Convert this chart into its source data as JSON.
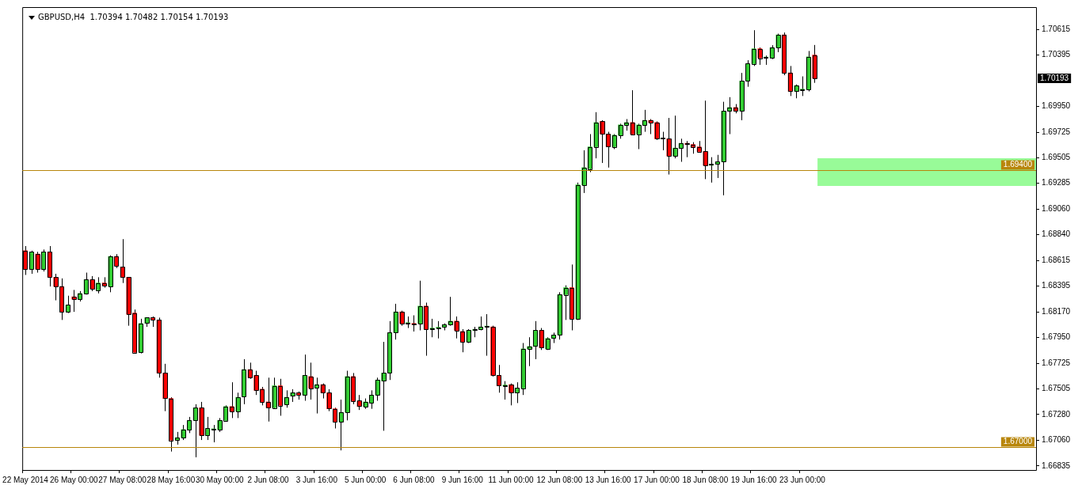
{
  "chart_data": {
    "type": "candlestick",
    "title": "GBPUSD,H4  1.70394 1.70482 1.70154 1.70193",
    "categories": [
      "22 May 2014",
      null,
      null,
      null,
      null,
      null,
      null,
      null,
      "26 May 00:00",
      null,
      null,
      null,
      null,
      null,
      null,
      null,
      "27 May 08:00",
      null,
      null,
      null,
      null,
      null,
      null,
      null,
      "28 May 16:00",
      null,
      null,
      null,
      null,
      null,
      null,
      null,
      "30 May 00:00",
      null,
      null,
      null,
      null,
      null,
      null,
      null,
      "2 Jun 08:00",
      null,
      null,
      null,
      null,
      null,
      null,
      null,
      "3 Jun 16:00",
      null,
      null,
      null,
      null,
      null,
      null,
      null,
      "5 Jun 00:00",
      null,
      null,
      null,
      null,
      null,
      null,
      null,
      "6 Jun 08:00",
      null,
      null,
      null,
      null,
      null,
      null,
      null,
      "9 Jun 16:00",
      null,
      null,
      null,
      null,
      null,
      null,
      null,
      "11 Jun 00:00",
      null,
      null,
      null,
      null,
      null,
      null,
      null,
      "12 Jun 08:00",
      null,
      null,
      null,
      null,
      null,
      null,
      null,
      "13 Jun 16:00",
      null,
      null,
      null,
      null,
      null,
      null,
      null,
      "17 Jun 00:00",
      null,
      null,
      null,
      null,
      null,
      null,
      null,
      "18 Jun 08:00",
      null,
      null,
      null,
      null,
      null,
      null,
      null,
      "19 Jun 16:00",
      null,
      null,
      null,
      null,
      null,
      null,
      null,
      "23 Jun 00:00",
      null,
      null,
      null,
      null,
      null,
      null,
      null,
      null,
      null,
      null,
      null,
      null,
      null,
      null,
      null,
      null,
      null,
      null,
      null,
      null,
      null,
      null,
      null,
      null,
      null,
      null,
      null,
      null,
      null,
      null,
      null,
      null,
      null,
      null,
      null,
      null,
      null,
      null
    ],
    "ohlc": [
      [
        1.687,
        1.6874,
        1.6849,
        1.6854
      ],
      [
        1.6854,
        1.687,
        1.685,
        1.6869
      ],
      [
        1.6867,
        1.6869,
        1.6851,
        1.6854
      ],
      [
        1.6854,
        1.6871,
        1.6852,
        1.6869
      ],
      [
        1.6869,
        1.6874,
        1.6839,
        1.6847
      ],
      [
        1.6847,
        1.685,
        1.6827,
        1.6839
      ],
      [
        1.6839,
        1.6846,
        1.681,
        1.6817
      ],
      [
        1.6817,
        1.6831,
        1.6816,
        1.6823
      ],
      [
        1.683,
        1.6836,
        1.6817,
        1.6828
      ],
      [
        1.6828,
        1.6835,
        1.6826,
        1.6833
      ],
      [
        1.6833,
        1.6851,
        1.6832,
        1.6845
      ],
      [
        1.6845,
        1.6848,
        1.6835,
        1.6837
      ],
      [
        1.6836,
        1.6847,
        1.6833,
        1.6842
      ],
      [
        1.6842,
        1.6847,
        1.6838,
        1.684
      ],
      [
        1.6839,
        1.6866,
        1.6834,
        1.6865
      ],
      [
        1.6865,
        1.6867,
        1.6855,
        1.6857
      ],
      [
        1.6856,
        1.688,
        1.6842,
        1.6847
      ],
      [
        1.6847,
        1.6847,
        1.6805,
        1.6815
      ],
      [
        1.6816,
        1.6819,
        1.6781,
        1.6782
      ],
      [
        1.6782,
        1.6811,
        1.6781,
        1.6807
      ],
      [
        1.6807,
        1.6812,
        1.6804,
        1.6812
      ],
      [
        1.6812,
        1.6813,
        1.6804,
        1.681
      ],
      [
        1.681,
        1.6812,
        1.676,
        1.6764
      ],
      [
        1.6764,
        1.6772,
        1.6731,
        1.6742
      ],
      [
        1.6742,
        1.6743,
        1.6696,
        1.6706
      ],
      [
        1.6706,
        1.6713,
        1.6702,
        1.6708
      ],
      [
        1.6708,
        1.6719,
        1.6706,
        1.6715
      ],
      [
        1.6715,
        1.6726,
        1.6712,
        1.6723
      ],
      [
        1.6723,
        1.6737,
        1.6691,
        1.6734
      ],
      [
        1.6734,
        1.6739,
        1.6706,
        1.671
      ],
      [
        1.671,
        1.6726,
        1.6706,
        1.6716
      ],
      [
        1.6715,
        1.6719,
        1.6704,
        1.6715
      ],
      [
        1.6715,
        1.6725,
        1.6713,
        1.6723
      ],
      [
        1.6723,
        1.6736,
        1.6722,
        1.6735
      ],
      [
        1.6735,
        1.6756,
        1.6725,
        1.6731
      ],
      [
        1.6731,
        1.6747,
        1.6725,
        1.6743
      ],
      [
        1.6744,
        1.6776,
        1.6737,
        1.6767
      ],
      [
        1.6767,
        1.6773,
        1.6759,
        1.676
      ],
      [
        1.6762,
        1.6766,
        1.6745,
        1.6749
      ],
      [
        1.675,
        1.6752,
        1.6736,
        1.6739
      ],
      [
        1.6739,
        1.676,
        1.6722,
        1.6734
      ],
      [
        1.6734,
        1.676,
        1.6733,
        1.6753
      ],
      [
        1.6753,
        1.6759,
        1.6727,
        1.6736
      ],
      [
        1.6737,
        1.6749,
        1.6734,
        1.6743
      ],
      [
        1.6744,
        1.675,
        1.6739,
        1.6747
      ],
      [
        1.6747,
        1.6748,
        1.6741,
        1.6745
      ],
      [
        1.6745,
        1.678,
        1.674,
        1.6762
      ],
      [
        1.6761,
        1.6773,
        1.6741,
        1.6751
      ],
      [
        1.6751,
        1.676,
        1.6729,
        1.6754
      ],
      [
        1.6754,
        1.6755,
        1.6742,
        1.6747
      ],
      [
        1.6747,
        1.675,
        1.6731,
        1.6733
      ],
      [
        1.6733,
        1.6734,
        1.6716,
        1.6722
      ],
      [
        1.6722,
        1.6741,
        1.6697,
        1.673
      ],
      [
        1.673,
        1.6766,
        1.6723,
        1.6761
      ],
      [
        1.6761,
        1.6764,
        1.6737,
        1.674
      ],
      [
        1.674,
        1.6745,
        1.6732,
        1.6735
      ],
      [
        1.6735,
        1.6742,
        1.6733,
        1.6739
      ],
      [
        1.6738,
        1.6749,
        1.6733,
        1.6745
      ],
      [
        1.6745,
        1.676,
        1.674,
        1.6758
      ],
      [
        1.6757,
        1.6791,
        1.6714,
        1.6764
      ],
      [
        1.6764,
        1.6809,
        1.6758,
        1.6799
      ],
      [
        1.6799,
        1.6824,
        1.6793,
        1.6817
      ],
      [
        1.6817,
        1.6818,
        1.6805,
        1.6807
      ],
      [
        1.6807,
        1.6813,
        1.6803,
        1.6807
      ],
      [
        1.6807,
        1.6814,
        1.68,
        1.6806
      ],
      [
        1.6807,
        1.6844,
        1.6801,
        1.6822
      ],
      [
        1.6822,
        1.6825,
        1.6779,
        1.6802
      ],
      [
        1.6802,
        1.6811,
        1.6795,
        1.6803
      ],
      [
        1.6803,
        1.6809,
        1.6794,
        1.6803
      ],
      [
        1.6804,
        1.6807,
        1.6801,
        1.6806
      ],
      [
        1.6806,
        1.683,
        1.6805,
        1.6809
      ],
      [
        1.6809,
        1.6813,
        1.6794,
        1.6801
      ],
      [
        1.68,
        1.6802,
        1.6782,
        1.6791
      ],
      [
        1.6791,
        1.6802,
        1.679,
        1.6801
      ],
      [
        1.6801,
        1.6804,
        1.6795,
        1.6801
      ],
      [
        1.6802,
        1.6813,
        1.6801,
        1.6804
      ],
      [
        1.6804,
        1.6815,
        1.6779,
        1.6804
      ],
      [
        1.6804,
        1.6805,
        1.6761,
        1.6762
      ],
      [
        1.6762,
        1.6771,
        1.6747,
        1.6753
      ],
      [
        1.6753,
        1.6757,
        1.6741,
        1.6753
      ],
      [
        1.6754,
        1.6755,
        1.6736,
        1.6747
      ],
      [
        1.6747,
        1.6756,
        1.6738,
        1.6751
      ],
      [
        1.6751,
        1.679,
        1.6745,
        1.6785
      ],
      [
        1.6785,
        1.6795,
        1.677,
        1.6787
      ],
      [
        1.6787,
        1.6809,
        1.6776,
        1.6801
      ],
      [
        1.6801,
        1.6803,
        1.6784,
        1.6786
      ],
      [
        1.6785,
        1.6795,
        1.6784,
        1.6794
      ],
      [
        1.6794,
        1.6799,
        1.679,
        1.6797
      ],
      [
        1.6797,
        1.6834,
        1.6793,
        1.6832
      ],
      [
        1.6832,
        1.684,
        1.681,
        1.6838
      ],
      [
        1.6838,
        1.6858,
        1.6801,
        1.6811
      ],
      [
        1.6811,
        1.6929,
        1.681,
        1.6927
      ],
      [
        1.6927,
        1.6957,
        1.692,
        1.6942
      ],
      [
        1.6941,
        1.6971,
        1.6938,
        1.696
      ],
      [
        1.696,
        1.699,
        1.695,
        1.6981
      ],
      [
        1.6982,
        1.6983,
        1.6946,
        1.6971
      ],
      [
        1.6971,
        1.6973,
        1.6942,
        1.696
      ],
      [
        1.696,
        1.6971,
        1.6958,
        1.697
      ],
      [
        1.697,
        1.698,
        1.6967,
        1.6979
      ],
      [
        1.6979,
        1.6984,
        1.6974,
        1.6981
      ],
      [
        1.6981,
        1.7009,
        1.697,
        1.6971
      ],
      [
        1.6971,
        1.698,
        1.6958,
        1.6979
      ],
      [
        1.6979,
        1.6992,
        1.6973,
        1.6983
      ],
      [
        1.6983,
        1.6984,
        1.6971,
        1.6981
      ],
      [
        1.6981,
        1.6982,
        1.6966,
        1.6967
      ],
      [
        1.6967,
        1.6973,
        1.6957,
        1.6967
      ],
      [
        1.6967,
        1.6985,
        1.6936,
        1.6952
      ],
      [
        1.6952,
        1.6987,
        1.695,
        1.6959
      ],
      [
        1.6959,
        1.6967,
        1.6947,
        1.6963
      ],
      [
        1.6963,
        1.6965,
        1.6951,
        1.6962
      ],
      [
        1.6962,
        1.6964,
        1.6954,
        1.696
      ],
      [
        1.696,
        1.6965,
        1.6956,
        1.6956
      ],
      [
        1.6956,
        1.7,
        1.6932,
        1.6944
      ],
      [
        1.6944,
        1.6951,
        1.6929,
        1.6945
      ],
      [
        1.6945,
        1.6953,
        1.6933,
        1.6947
      ],
      [
        1.6947,
        1.6999,
        1.6918,
        1.6991
      ],
      [
        1.6991,
        1.7003,
        1.6971,
        1.6994
      ],
      [
        1.6994,
        1.6997,
        1.6989,
        1.6991
      ],
      [
        1.6991,
        1.7024,
        1.6983,
        1.7017
      ],
      [
        1.7017,
        1.7035,
        1.7012,
        1.7032
      ],
      [
        1.7032,
        1.7061,
        1.703,
        1.7045
      ],
      [
        1.7045,
        1.7046,
        1.7031,
        1.7037
      ],
      [
        1.7037,
        1.7039,
        1.7031,
        1.7037
      ],
      [
        1.7037,
        1.7048,
        1.7036,
        1.7046
      ],
      [
        1.7046,
        1.7058,
        1.7042,
        1.7057
      ],
      [
        1.7057,
        1.7059,
        1.7022,
        1.7024
      ],
      [
        1.7024,
        1.703,
        1.7004,
        1.7008
      ],
      [
        1.7008,
        1.7014,
        1.7002,
        1.7013
      ],
      [
        1.7009,
        1.7021,
        1.7004,
        1.701
      ],
      [
        1.701,
        1.7043,
        1.7008,
        1.7038
      ],
      [
        1.70394,
        1.70482,
        1.70154,
        1.70193
      ],
      null,
      null,
      null,
      null,
      null,
      null,
      null,
      null,
      null,
      null,
      null,
      null,
      null,
      null,
      null,
      null,
      null,
      null,
      null,
      null,
      null,
      null,
      null,
      null,
      null,
      null,
      null,
      null,
      null,
      null,
      null,
      null,
      null,
      null,
      null,
      null
    ],
    "colors": [
      "#ff0000",
      "#32cd32",
      "#ff0000",
      "#32cd32",
      "#ff0000",
      "#ff0000",
      "#ff0000",
      "#32cd32",
      "#ff0000",
      "#32cd32",
      "#32cd32",
      "#ff0000",
      "#32cd32",
      "#ff0000",
      "#32cd32",
      "#ff0000",
      "#ff0000",
      "#ff0000",
      "#ff0000",
      "#32cd32",
      "#32cd32",
      "#ff0000",
      "#ff0000",
      "#ff0000",
      "#ff0000",
      "#32cd32",
      "#32cd32",
      "#32cd32",
      "#32cd32",
      "#ff0000",
      "#32cd32",
      "#32cd32",
      "#32cd32",
      "#32cd32",
      "#ff0000",
      "#32cd32",
      "#32cd32",
      "#ff0000",
      "#ff0000",
      "#ff0000",
      "#ff0000",
      "#32cd32",
      "#ff0000",
      "#32cd32",
      "#32cd32",
      "#ff0000",
      "#32cd32",
      "#ff0000",
      "#32cd32",
      "#ff0000",
      "#ff0000",
      "#ff0000",
      "#32cd32",
      "#32cd32",
      "#ff0000",
      "#ff0000",
      "#32cd32",
      "#32cd32",
      "#32cd32",
      "#32cd32",
      "#32cd32",
      "#32cd32",
      "#ff0000",
      "#32cd32",
      "#ff0000",
      "#32cd32",
      "#ff0000",
      "#32cd32",
      "#32cd32",
      "#32cd32",
      "#32cd32",
      "#ff0000",
      "#ff0000",
      "#32cd32",
      "#32cd32",
      "#32cd32",
      "#32cd32",
      "#ff0000",
      "#ff0000",
      "#32cd32",
      "#ff0000",
      "#32cd32",
      "#32cd32",
      "#32cd32",
      "#32cd32",
      "#ff0000",
      "#32cd32",
      "#32cd32",
      "#32cd32",
      "#32cd32",
      "#ff0000",
      "#32cd32",
      "#32cd32",
      "#32cd32",
      "#32cd32",
      "#ff0000",
      "#ff0000",
      "#32cd32",
      "#32cd32",
      "#32cd32",
      "#ff0000",
      "#32cd32",
      "#32cd32",
      "#ff0000",
      "#ff0000",
      "#32cd32",
      "#ff0000",
      "#32cd32",
      "#32cd32",
      "#ff0000",
      "#ff0000",
      "#ff0000",
      "#ff0000",
      "#32cd32",
      "#32cd32",
      "#32cd32",
      "#32cd32",
      "#ff0000",
      "#32cd32",
      "#32cd32",
      "#32cd32",
      "#ff0000",
      "#32cd32",
      "#32cd32",
      "#32cd32",
      "#ff0000",
      "#ff0000",
      "#32cd32",
      "#32cd32",
      "#32cd32",
      "#ff0000",
      null,
      null,
      null,
      null,
      null,
      null,
      null,
      null,
      null,
      null,
      null,
      null,
      null,
      null,
      null,
      null,
      null,
      null,
      null,
      null,
      null,
      null,
      null,
      null,
      null,
      null,
      null,
      null,
      null,
      null,
      null,
      null,
      null,
      null,
      null,
      null
    ],
    "ylim": [
      1.668,
      1.7081
    ],
    "yticks": [
      1.70615,
      1.70395,
      {
        "value": 1.6995,
        "label": "1.69950"
      },
      1.69725,
      1.69505,
      1.69285,
      {
        "value": 1.6906,
        "label": "1.69060"
      },
      {
        "value": 1.6884,
        "label": "1.68840"
      },
      1.68615,
      1.68395,
      {
        "value": 1.6817,
        "label": "1.68170"
      },
      {
        "value": 1.6795,
        "label": "1.67950"
      },
      1.67725,
      1.67505,
      {
        "value": 1.6728,
        "label": "1.67280"
      },
      {
        "value": 1.6706,
        "label": "1.67060"
      },
      1.66835
    ],
    "ref_lines": [
      {
        "axis": "y",
        "value": 1.694,
        "label": "1.69400",
        "color": "#b8860b"
      },
      {
        "axis": "y",
        "value": 1.67,
        "label": "1.67000",
        "color": "#b8860b"
      }
    ],
    "bands": [
      {
        "axis": "y",
        "from": 1.6926,
        "to": 1.695,
        "color": "#98fb98"
      }
    ],
    "annotations": [
      "1.70193"
    ]
  }
}
